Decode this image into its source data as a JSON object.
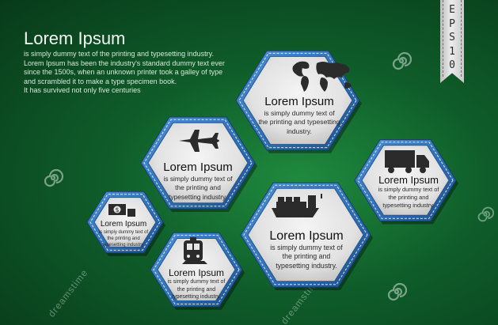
{
  "intro": {
    "title": "Lorem Ipsum",
    "lines": [
      "is simply dummy text of the printing and typesetting industry.",
      "Lorem Ipsum has been the industry's standard dummy text ever",
      "since the 1500s, when an unknown printer took a galley of type",
      "and scrambled it to make a type specimen book.",
      "It has survived not only five centuries"
    ]
  },
  "badge": {
    "letters": [
      "E",
      "P",
      "S",
      "1",
      "0"
    ]
  },
  "hexagons": [
    {
      "id": "world",
      "icon": "world-map-icon",
      "title": "Lorem Ipsum",
      "lines": [
        "is simply dummy text of",
        "the printing and typesetting",
        "industry."
      ]
    },
    {
      "id": "plane",
      "icon": "airplane-icon",
      "title": "Lorem Ipsum",
      "lines": [
        "is simply dummy text of",
        "the printing and",
        "typesetting industry."
      ]
    },
    {
      "id": "truck",
      "icon": "truck-icon",
      "title": "Lorem Ipsum",
      "lines": [
        "is simply dummy text of",
        "the printing and",
        "typesetting industry."
      ]
    },
    {
      "id": "ship",
      "icon": "cargo-ship-icon",
      "title": "Lorem Ipsum",
      "lines": [
        "is simply dummy text of",
        "the printing and",
        "typesetting industry."
      ]
    },
    {
      "id": "money",
      "icon": "money-icon",
      "title": "Lorem Ipsum",
      "lines": [
        "is simply dummy text of",
        "the printing and",
        "typesetting industry."
      ]
    },
    {
      "id": "train",
      "icon": "train-icon",
      "title": "Lorem Ipsum",
      "lines": [
        "is simply dummy text of",
        "the printing and",
        "typesetting industry."
      ]
    }
  ],
  "watermarks": [
    "dreamstime",
    "dreamstime",
    "dreamstime"
  ],
  "colors": {
    "hex_border": "#2f6fb5",
    "hex_fill": "#e6e6e6",
    "background": "#0f5d2a"
  }
}
